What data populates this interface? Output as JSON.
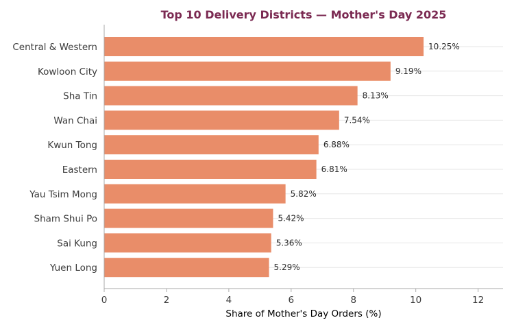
{
  "chart_data": {
    "type": "bar",
    "orientation": "horizontal",
    "title": "Top 10 Delivery Districts — Mother's Day 2025",
    "xlabel": "Share of Mother's Day Orders (%)",
    "ylabel": "",
    "categories": [
      "Central & Western",
      "Kowloon City",
      "Sha Tin",
      "Wan Chai",
      "Kwun Tong",
      "Eastern",
      "Yau Tsim Mong",
      "Sham Shui Po",
      "Sai Kung",
      "Yuen Long"
    ],
    "values": [
      10.25,
      9.19,
      8.13,
      7.54,
      6.88,
      6.81,
      5.82,
      5.42,
      5.36,
      5.29
    ],
    "value_labels": [
      "10.25%",
      "9.19%",
      "8.13%",
      "7.54%",
      "6.88%",
      "6.81%",
      "5.82%",
      "5.42%",
      "5.36%",
      "5.29%"
    ],
    "xticks": [
      0,
      2,
      4,
      6,
      8,
      10,
      12
    ],
    "xlim": [
      0,
      12.8
    ],
    "grid": "horizontal",
    "bar_color": "#e98d69",
    "title_color": "#7b2a52"
  }
}
